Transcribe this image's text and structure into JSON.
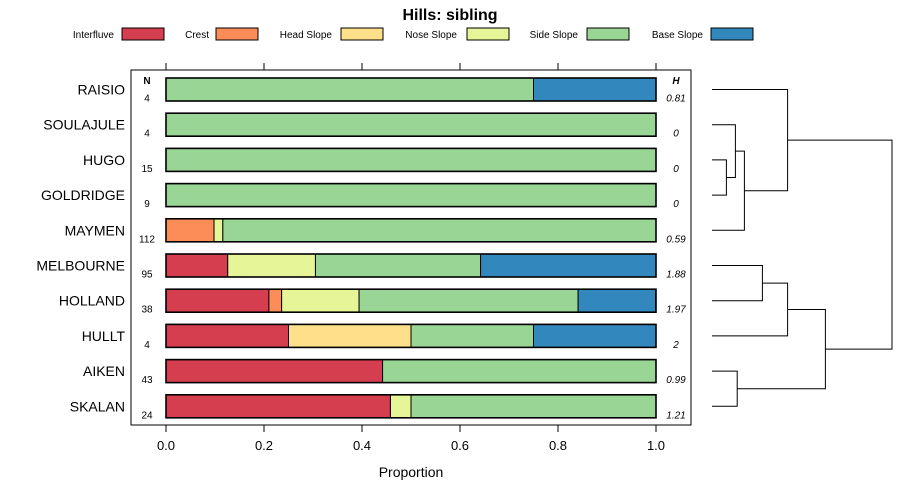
{
  "chart_data": {
    "type": "bar",
    "orientation": "horizontal",
    "stacked": true,
    "title": "Hills: sibling",
    "xlabel": "Proportion",
    "ylabel": "",
    "xlim": [
      0,
      1
    ],
    "x_ticks": [
      "0.0",
      "0.2",
      "0.4",
      "0.6",
      "0.8",
      "1.0"
    ],
    "x_tick_values": [
      0,
      0.2,
      0.4,
      0.6,
      0.8,
      1.0
    ],
    "n_header": "N",
    "h_header": "H",
    "legend_position": "top",
    "series": [
      {
        "name": "Interfluve",
        "color": "#D53E4F"
      },
      {
        "name": "Crest",
        "color": "#FC8D59"
      },
      {
        "name": "Head Slope",
        "color": "#FEE08B"
      },
      {
        "name": "Nose Slope",
        "color": "#E6F598"
      },
      {
        "name": "Side Slope",
        "color": "#99D594"
      },
      {
        "name": "Base Slope",
        "color": "#3288BD"
      }
    ],
    "categories": [
      "RAISIO",
      "SOULAJULE",
      "HUGO",
      "GOLDRIDGE",
      "MAYMEN",
      "MELBOURNE",
      "HOLLAND",
      "HULLT",
      "AIKEN",
      "SKALAN"
    ],
    "values": [
      [
        0,
        0,
        0,
        0,
        0.75,
        0.25
      ],
      [
        0,
        0,
        0,
        0,
        1.0,
        0
      ],
      [
        0,
        0,
        0,
        0,
        1.0,
        0
      ],
      [
        0,
        0,
        0,
        0,
        1.0,
        0
      ],
      [
        0,
        0.098,
        0,
        0.018,
        0.884,
        0
      ],
      [
        0.126,
        0,
        0,
        0.179,
        0.337,
        0.358
      ],
      [
        0.21,
        0.026,
        0,
        0.158,
        0.447,
        0.158
      ],
      [
        0.25,
        0,
        0.25,
        0,
        0.25,
        0.25
      ],
      [
        0.442,
        0,
        0,
        0,
        0.558,
        0
      ],
      [
        0.458,
        0,
        0,
        0.042,
        0.5,
        0
      ]
    ],
    "n": [
      "4",
      "4",
      "15",
      "9",
      "112",
      "95",
      "38",
      "4",
      "43",
      "24"
    ],
    "h": [
      "0.81",
      "0",
      "0",
      "0",
      "0.59",
      "1.88",
      "1.97",
      "2",
      "0.99",
      "1.21"
    ],
    "dendrogram_merges": [
      {
        "members": [
          "HUGO",
          "GOLDRIDGE"
        ],
        "height": 0.08
      },
      {
        "members": [
          "SOULAJULE",
          "HUGO+GOLDRIDGE"
        ],
        "height": 0.13
      },
      {
        "members": [
          "AIKEN",
          "SKALAN"
        ],
        "height": 0.14
      },
      {
        "members": [
          "SOULAJULE+HUGO+GOLDRIDGE",
          "MAYMEN"
        ],
        "height": 0.18
      },
      {
        "members": [
          "MELBOURNE",
          "HOLLAND"
        ],
        "height": 0.28
      },
      {
        "members": [
          "MELBOURNE+HOLLAND",
          "HULLT"
        ],
        "height": 0.42
      },
      {
        "members": [
          "RAISIO",
          "SOULAJULE+HUGO+GOLDRIDGE+MAYMEN"
        ],
        "height": 0.42
      },
      {
        "members": [
          "MELBOURNE+HOLLAND+HULLT",
          "AIKEN+SKALAN"
        ],
        "height": 0.63
      },
      {
        "members": [
          "RAISIO+SOULAJULE+HUGO+GOLDRIDGE+MAYMEN",
          "MELBOURNE+HOLLAND+HULLT+AIKEN+SKALAN"
        ],
        "height": 1.0
      }
    ]
  }
}
